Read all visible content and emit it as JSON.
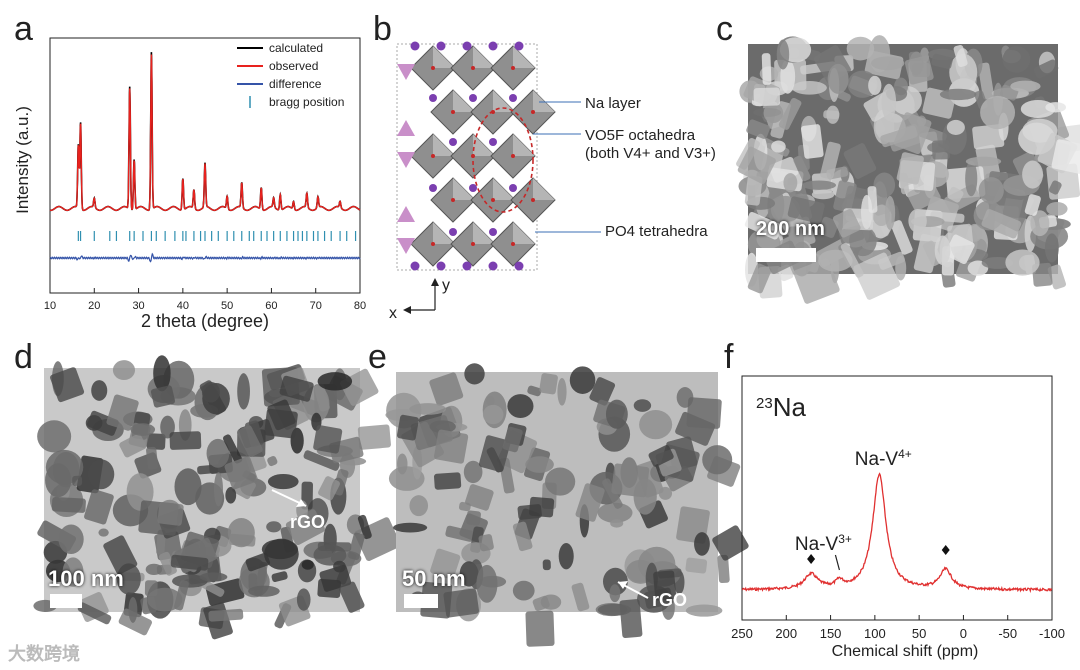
{
  "panels": {
    "a": "a",
    "b": "b",
    "c": "c",
    "d": "d",
    "e": "e",
    "f": "f"
  },
  "chart_data": [
    {
      "panel": "a",
      "type": "line",
      "xlabel": "2 theta (degree)",
      "ylabel": "Intensity (a.u.)",
      "xlim": [
        10,
        80
      ],
      "xticks": [
        10,
        20,
        30,
        40,
        50,
        60,
        70,
        80
      ],
      "legend": [
        "calculated",
        "observed",
        "difference",
        "bragg position"
      ],
      "legend_position": "top-right",
      "colors": {
        "calculated": "#000000",
        "observed": "#e8221e",
        "difference": "#3554a8",
        "bragg": "#2f8fb0"
      },
      "peaks": [
        {
          "x": 16.4,
          "y": 0.4
        },
        {
          "x": 16.9,
          "y": 0.55
        },
        {
          "x": 20.0,
          "y": 0.06
        },
        {
          "x": 28.0,
          "y": 0.78
        },
        {
          "x": 29.0,
          "y": 0.32
        },
        {
          "x": 32.9,
          "y": 1.0
        },
        {
          "x": 40.0,
          "y": 0.2
        },
        {
          "x": 42.5,
          "y": 0.12
        },
        {
          "x": 45.0,
          "y": 0.28
        },
        {
          "x": 50.0,
          "y": 0.08
        },
        {
          "x": 53.3,
          "y": 0.16
        },
        {
          "x": 57.7,
          "y": 0.14
        },
        {
          "x": 60.5,
          "y": 0.06
        },
        {
          "x": 62.0,
          "y": 0.1
        },
        {
          "x": 65.0,
          "y": 0.05
        },
        {
          "x": 68.0,
          "y": 0.09
        },
        {
          "x": 70.5,
          "y": 0.07
        },
        {
          "x": 75.5,
          "y": 0.04
        }
      ],
      "bragg_positions": [
        16.4,
        16.9,
        20.0,
        23.5,
        25.0,
        28.0,
        29.0,
        31.0,
        32.9,
        34.0,
        36.0,
        38.2,
        40.0,
        40.7,
        42.5,
        44.0,
        45.0,
        46.5,
        48.0,
        50.0,
        51.5,
        53.3,
        55.0,
        56.0,
        57.7,
        59.0,
        60.5,
        62.0,
        63.5,
        65.0,
        66.0,
        67.0,
        68.0,
        69.5,
        70.5,
        72.0,
        73.5,
        75.5,
        77.0,
        79.0
      ]
    },
    {
      "panel": "f",
      "type": "line",
      "title": "23Na",
      "xlabel": "Chemical shift (ppm)",
      "xlim": [
        250,
        -100
      ],
      "xticks": [
        250,
        200,
        150,
        100,
        50,
        0,
        -50,
        -100
      ],
      "tick_labels": [
        "250",
        "200",
        "150",
        "100",
        "50",
        "0",
        "-50",
        "-100"
      ],
      "color": "#e03030",
      "peaks": [
        {
          "x": 95,
          "y": 1.0,
          "w": 9
        },
        {
          "x": 172,
          "y": 0.13,
          "w": 9
        },
        {
          "x": 140,
          "y": 0.06,
          "w": 5
        },
        {
          "x": 20,
          "y": 0.17,
          "w": 8
        }
      ],
      "annotations": [
        {
          "text": "Na-V4+",
          "x": 95
        },
        {
          "text": "Na-V3+",
          "x": 140
        }
      ],
      "diamond_markers": [
        172,
        20
      ]
    }
  ],
  "structure": {
    "axis_y": "y",
    "axis_x": "x",
    "labels": [
      "Na layer",
      "VO5F octahedra",
      "(both V4+ and V3+)",
      "PO4 tetrahedra"
    ]
  },
  "micrographs": {
    "c": {
      "scale": "200 nm"
    },
    "d": {
      "scale": "100 nm",
      "label": "rGO"
    },
    "e": {
      "scale": "50 nm",
      "label": "rGO"
    }
  },
  "watermark": "大数跨境"
}
